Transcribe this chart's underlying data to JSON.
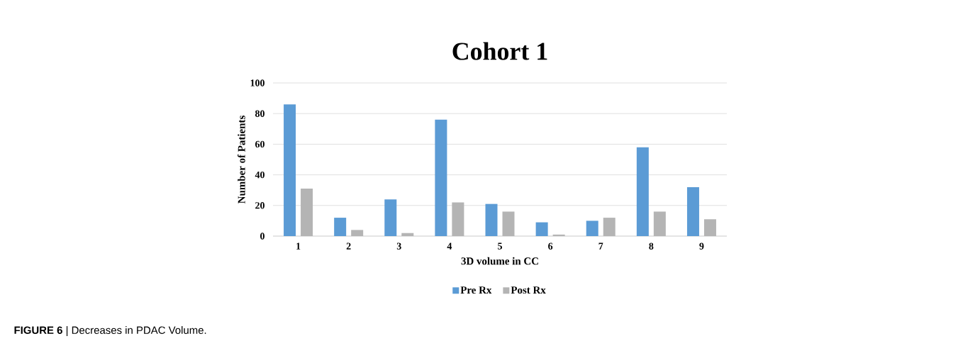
{
  "chart_data": {
    "type": "bar",
    "title": "Cohort 1",
    "xlabel": "3D volume in CC",
    "ylabel": "Number of Patients",
    "categories": [
      "1",
      "2",
      "3",
      "4",
      "5",
      "6",
      "7",
      "8",
      "9"
    ],
    "series": [
      {
        "name": "Pre Rx",
        "color": "#5b9bd5",
        "values": [
          86,
          12,
          24,
          76,
          21,
          9,
          10,
          58,
          32
        ]
      },
      {
        "name": "Post Rx",
        "color": "#b4b4b4",
        "values": [
          31,
          4,
          2,
          22,
          16,
          1,
          12,
          16,
          11
        ]
      }
    ],
    "ylim": [
      0,
      100
    ],
    "yticks": [
      0,
      20,
      40,
      60,
      80,
      100
    ],
    "grid": "y",
    "legend": "bottom",
    "annotations": [
      "**FIGURE 6** | Decreases in PDAC Volume."
    ]
  }
}
